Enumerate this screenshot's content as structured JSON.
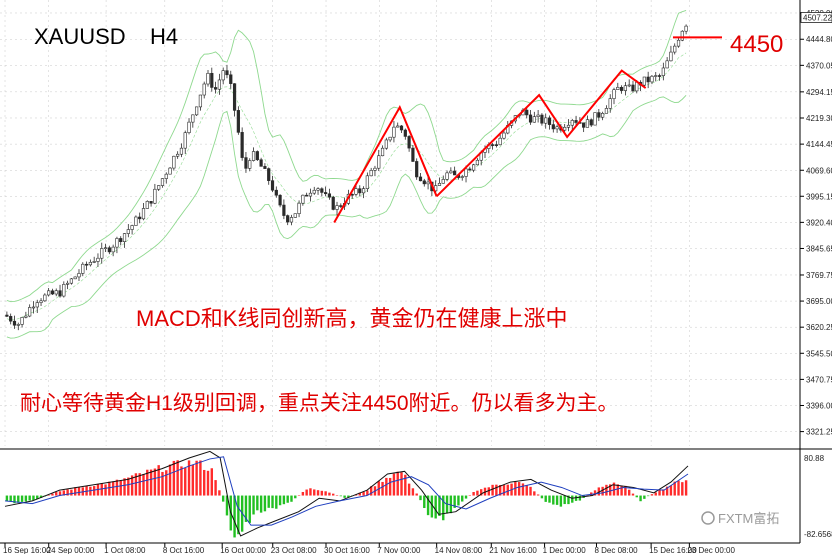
{
  "chart_data": {
    "type": "candlestick",
    "symbol": "XAUUSD",
    "timeframe": "H4",
    "price_axis": {
      "ylim": [
        3280,
        4540
      ],
      "ticks": [
        {
          "v": 4520.0,
          "label": "4520.00"
        },
        {
          "v": 4444.8,
          "label": "4444.80"
        },
        {
          "v": 4370.05,
          "label": "4370.05"
        },
        {
          "v": 4294.15,
          "label": "4294.15"
        },
        {
          "v": 4219.3,
          "label": "4219.30"
        },
        {
          "v": 4144.45,
          "label": "4144.45"
        },
        {
          "v": 4069.6,
          "label": "4069.60"
        },
        {
          "v": 3995.15,
          "label": "3995.15"
        },
        {
          "v": 3920.4,
          "label": "3920.40"
        },
        {
          "v": 3845.65,
          "label": "3845.65"
        },
        {
          "v": 3769.75,
          "label": "3769.75"
        },
        {
          "v": 3695.0,
          "label": "3695.00"
        },
        {
          "v": 3620.25,
          "label": "3620.25"
        },
        {
          "v": 3545.5,
          "label": "3545.50"
        },
        {
          "v": 3470.75,
          "label": "3470.75"
        },
        {
          "v": 3396.0,
          "label": "3396.00"
        },
        {
          "v": 3321.25,
          "label": "3321.25"
        }
      ],
      "current_price_label": "4507.22"
    },
    "time_axis": {
      "range": [
        0,
        1000
      ],
      "labels": [
        {
          "t": 0,
          "label": "16 Sep 16:00"
        },
        {
          "t": 64,
          "label": "24 Sep 00:00"
        },
        {
          "t": 148,
          "label": "1 Oct 08:00"
        },
        {
          "t": 234,
          "label": "8 Oct 16:00"
        },
        {
          "t": 318,
          "label": "16 Oct 00:00"
        },
        {
          "t": 392,
          "label": "23 Oct 08:00"
        },
        {
          "t": 470,
          "label": "30 Oct 16:00"
        },
        {
          "t": 548,
          "label": "7 Nov 00:00"
        },
        {
          "t": 632,
          "label": "14 Nov 08:00"
        },
        {
          "t": 712,
          "label": "21 Nov 16:00"
        },
        {
          "t": 790,
          "label": "1 Dec 00:00"
        },
        {
          "t": 866,
          "label": "8 Dec 08:00"
        },
        {
          "t": 946,
          "label": "15 Dec 16:00"
        },
        {
          "t": 1002,
          "label": "23 Dec 00:00"
        }
      ]
    },
    "price_path": [
      {
        "t": 0,
        "p": 3655
      },
      {
        "t": 20,
        "p": 3630
      },
      {
        "t": 45,
        "p": 3700
      },
      {
        "t": 80,
        "p": 3720
      },
      {
        "t": 120,
        "p": 3800
      },
      {
        "t": 160,
        "p": 3860
      },
      {
        "t": 190,
        "p": 3920
      },
      {
        "t": 215,
        "p": 3990
      },
      {
        "t": 240,
        "p": 4080
      },
      {
        "t": 262,
        "p": 4160
      },
      {
        "t": 280,
        "p": 4260
      },
      {
        "t": 296,
        "p": 4340
      },
      {
        "t": 308,
        "p": 4300
      },
      {
        "t": 320,
        "p": 4360
      },
      {
        "t": 330,
        "p": 4310
      },
      {
        "t": 340,
        "p": 4200
      },
      {
        "t": 350,
        "p": 4060
      },
      {
        "t": 360,
        "p": 4120
      },
      {
        "t": 375,
        "p": 4080
      },
      {
        "t": 390,
        "p": 4030
      },
      {
        "t": 400,
        "p": 3970
      },
      {
        "t": 412,
        "p": 3930
      },
      {
        "t": 425,
        "p": 3950
      },
      {
        "t": 440,
        "p": 4000
      },
      {
        "t": 455,
        "p": 4030
      },
      {
        "t": 470,
        "p": 3990
      },
      {
        "t": 485,
        "p": 3960
      },
      {
        "t": 500,
        "p": 3990
      },
      {
        "t": 520,
        "p": 4010
      },
      {
        "t": 540,
        "p": 4080
      },
      {
        "t": 555,
        "p": 4130
      },
      {
        "t": 570,
        "p": 4200
      },
      {
        "t": 585,
        "p": 4180
      },
      {
        "t": 600,
        "p": 4070
      },
      {
        "t": 615,
        "p": 4040
      },
      {
        "t": 630,
        "p": 4010
      },
      {
        "t": 645,
        "p": 4060
      },
      {
        "t": 660,
        "p": 4050
      },
      {
        "t": 680,
        "p": 4080
      },
      {
        "t": 700,
        "p": 4130
      },
      {
        "t": 720,
        "p": 4150
      },
      {
        "t": 740,
        "p": 4200
      },
      {
        "t": 755,
        "p": 4240
      },
      {
        "t": 770,
        "p": 4220
      },
      {
        "t": 790,
        "p": 4210
      },
      {
        "t": 810,
        "p": 4190
      },
      {
        "t": 830,
        "p": 4220
      },
      {
        "t": 850,
        "p": 4200
      },
      {
        "t": 870,
        "p": 4230
      },
      {
        "t": 885,
        "p": 4270
      },
      {
        "t": 900,
        "p": 4310
      },
      {
        "t": 915,
        "p": 4300
      },
      {
        "t": 930,
        "p": 4320
      },
      {
        "t": 945,
        "p": 4330
      },
      {
        "t": 960,
        "p": 4340
      },
      {
        "t": 975,
        "p": 4400
      },
      {
        "t": 990,
        "p": 4470
      },
      {
        "t": 1000,
        "p": 4500
      }
    ],
    "bollinger_width": 95,
    "support_resistance_level": {
      "value": 4450,
      "label": "4450"
    },
    "trend_lines": [
      [
        {
          "t": 482,
          "p": 3920
        },
        {
          "t": 578,
          "p": 4250
        },
        {
          "t": 632,
          "p": 3995
        }
      ],
      [
        {
          "t": 632,
          "p": 3995
        },
        {
          "t": 782,
          "p": 4285
        },
        {
          "t": 823,
          "p": 4165
        },
        {
          "t": 903,
          "p": 4355
        },
        {
          "t": 938,
          "p": 4305
        }
      ]
    ],
    "annotations": [
      "MACD和K线同创新高，黄金仍在健康上涨中",
      "耐心等待黄金H1级别回调，重点关注4450附近。仍以看多为主。"
    ],
    "macd": {
      "scale": [
        -82.6,
        80.9
      ],
      "upper_label": "80.88",
      "lower_label": "-82.6568",
      "hist": [
        {
          "t": 0,
          "v": -10
        },
        {
          "t": 20,
          "v": -15
        },
        {
          "t": 45,
          "v": -8
        },
        {
          "t": 80,
          "v": 8
        },
        {
          "t": 120,
          "v": 18
        },
        {
          "t": 160,
          "v": 25
        },
        {
          "t": 200,
          "v": 40
        },
        {
          "t": 240,
          "v": 55
        },
        {
          "t": 280,
          "v": 62
        },
        {
          "t": 305,
          "v": 45
        },
        {
          "t": 322,
          "v": -20
        },
        {
          "t": 335,
          "v": -80
        },
        {
          "t": 350,
          "v": -60
        },
        {
          "t": 370,
          "v": -30
        },
        {
          "t": 395,
          "v": -25
        },
        {
          "t": 420,
          "v": -10
        },
        {
          "t": 445,
          "v": 15
        },
        {
          "t": 470,
          "v": 8
        },
        {
          "t": 500,
          "v": -5
        },
        {
          "t": 530,
          "v": 10
        },
        {
          "t": 560,
          "v": 35
        },
        {
          "t": 580,
          "v": 45
        },
        {
          "t": 600,
          "v": 10
        },
        {
          "t": 620,
          "v": -35
        },
        {
          "t": 640,
          "v": -45
        },
        {
          "t": 660,
          "v": -20
        },
        {
          "t": 690,
          "v": 10
        },
        {
          "t": 720,
          "v": 20
        },
        {
          "t": 750,
          "v": 25
        },
        {
          "t": 770,
          "v": 15
        },
        {
          "t": 790,
          "v": -10
        },
        {
          "t": 810,
          "v": -20
        },
        {
          "t": 840,
          "v": -10
        },
        {
          "t": 870,
          "v": 15
        },
        {
          "t": 890,
          "v": 25
        },
        {
          "t": 910,
          "v": 15
        },
        {
          "t": 930,
          "v": -10
        },
        {
          "t": 950,
          "v": 5
        },
        {
          "t": 975,
          "v": 20
        },
        {
          "t": 995,
          "v": 30
        }
      ],
      "macd_line": [
        {
          "t": 0,
          "v": -20
        },
        {
          "t": 40,
          "v": -10
        },
        {
          "t": 80,
          "v": 10
        },
        {
          "t": 130,
          "v": 20
        },
        {
          "t": 180,
          "v": 30
        },
        {
          "t": 230,
          "v": 50
        },
        {
          "t": 270,
          "v": 70
        },
        {
          "t": 300,
          "v": 82
        },
        {
          "t": 315,
          "v": 70
        },
        {
          "t": 330,
          "v": -30
        },
        {
          "t": 345,
          "v": -75
        },
        {
          "t": 370,
          "v": -60
        },
        {
          "t": 400,
          "v": -45
        },
        {
          "t": 430,
          "v": -30
        },
        {
          "t": 460,
          "v": -5
        },
        {
          "t": 490,
          "v": -10
        },
        {
          "t": 530,
          "v": 10
        },
        {
          "t": 560,
          "v": 40
        },
        {
          "t": 585,
          "v": 45
        },
        {
          "t": 610,
          "v": 10
        },
        {
          "t": 635,
          "v": -35
        },
        {
          "t": 660,
          "v": -30
        },
        {
          "t": 700,
          "v": 5
        },
        {
          "t": 740,
          "v": 25
        },
        {
          "t": 770,
          "v": 30
        },
        {
          "t": 800,
          "v": 10
        },
        {
          "t": 830,
          "v": -5
        },
        {
          "t": 860,
          "v": 0
        },
        {
          "t": 890,
          "v": 20
        },
        {
          "t": 920,
          "v": 15
        },
        {
          "t": 950,
          "v": 5
        },
        {
          "t": 975,
          "v": 25
        },
        {
          "t": 1000,
          "v": 55
        }
      ],
      "signal_line": [
        {
          "t": 0,
          "v": -10
        },
        {
          "t": 40,
          "v": -15
        },
        {
          "t": 80,
          "v": 0
        },
        {
          "t": 130,
          "v": 10
        },
        {
          "t": 180,
          "v": 20
        },
        {
          "t": 230,
          "v": 35
        },
        {
          "t": 270,
          "v": 55
        },
        {
          "t": 300,
          "v": 68
        },
        {
          "t": 320,
          "v": 72
        },
        {
          "t": 340,
          "v": -20
        },
        {
          "t": 360,
          "v": -55
        },
        {
          "t": 390,
          "v": -55
        },
        {
          "t": 420,
          "v": -40
        },
        {
          "t": 455,
          "v": -20
        },
        {
          "t": 490,
          "v": -10
        },
        {
          "t": 530,
          "v": 0
        },
        {
          "t": 565,
          "v": 25
        },
        {
          "t": 595,
          "v": 35
        },
        {
          "t": 620,
          "v": 20
        },
        {
          "t": 645,
          "v": -15
        },
        {
          "t": 675,
          "v": -25
        },
        {
          "t": 710,
          "v": -5
        },
        {
          "t": 750,
          "v": 15
        },
        {
          "t": 785,
          "v": 25
        },
        {
          "t": 815,
          "v": 15
        },
        {
          "t": 845,
          "v": 0
        },
        {
          "t": 875,
          "v": 5
        },
        {
          "t": 905,
          "v": 15
        },
        {
          "t": 935,
          "v": 12
        },
        {
          "t": 965,
          "v": 10
        },
        {
          "t": 1000,
          "v": 40
        }
      ]
    },
    "colors": {
      "candle": "#2a2a2a",
      "bands": "#8fd98f",
      "trendline": "#ff0000",
      "level_line": "#ff0000",
      "annotation": "#e00000",
      "macd_up": "#ff2b2b",
      "macd_down": "#22c022",
      "macd_line": "#111111",
      "signal_line": "#1f3fbf",
      "grid": "#c8c8c8"
    }
  },
  "watermark": "FXTM富拓"
}
